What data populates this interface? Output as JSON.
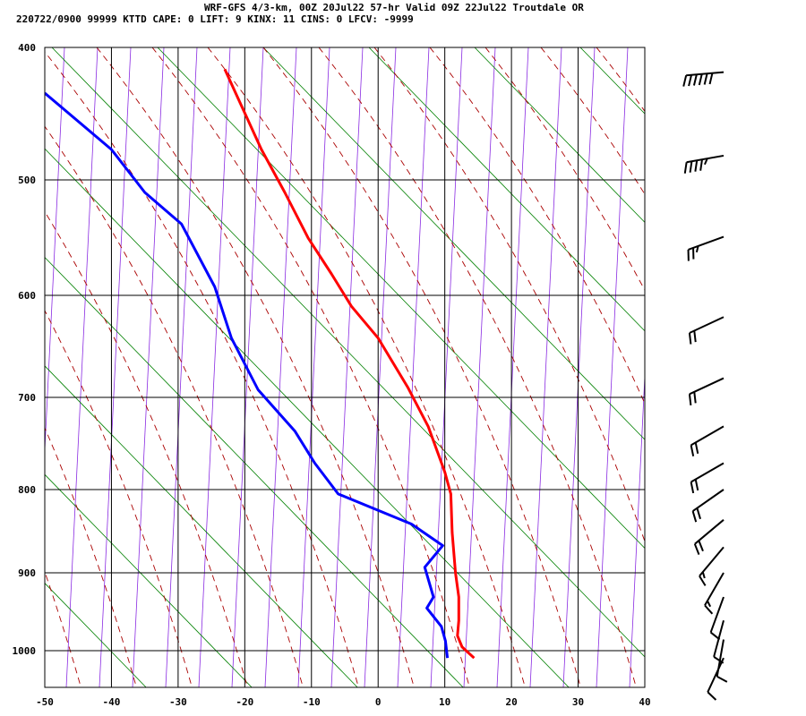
{
  "header": {
    "line1": "WRF-GFS 4/3-km, 00Z 20Jul22 57-hr Valid 09Z 22Jul22 Troutdale OR",
    "line2": "220722/0900 99999  KTTD    CAPE:     0 LIFT:     9 KINX:    11 CINS:     0 LFCV: -9999"
  },
  "chart_data": {
    "type": "skew-t",
    "title": "WRF-GFS 4/3-km, 00Z 20Jul22 57-hr Valid 09Z 22Jul22 Troutdale OR",
    "x_ticks": [
      -50,
      -40,
      -30,
      -20,
      -10,
      0,
      10,
      20,
      30,
      40
    ],
    "y_ticks": [
      400,
      500,
      600,
      700,
      800,
      900,
      1000
    ],
    "xlim": [
      -50,
      40
    ],
    "ylim": [
      1040,
      400
    ],
    "grid": true,
    "colors": {
      "temperature": "#ff0000",
      "dewpoint": "#0000ff",
      "isotherm": "#8a2be2",
      "dry_adiabat": "#008000",
      "moist_adiabat": "#aa0000",
      "grid": "#000000"
    },
    "series": [
      {
        "key": "temperature",
        "points": [
          [
            -23,
            415
          ],
          [
            -17.5,
            475
          ],
          [
            -14,
            510
          ],
          [
            -10.5,
            548
          ],
          [
            -7,
            580
          ],
          [
            -4,
            610
          ],
          [
            0,
            640
          ],
          [
            4.5,
            690
          ],
          [
            7.5,
            730
          ],
          [
            10,
            780
          ],
          [
            10.9,
            805
          ],
          [
            11.1,
            850
          ],
          [
            11.6,
            900
          ],
          [
            12.1,
            930
          ],
          [
            12.1,
            960
          ],
          [
            11.9,
            980
          ],
          [
            12.6,
            995
          ],
          [
            14.4,
            1010
          ]
        ]
      },
      {
        "key": "dewpoint",
        "points": [
          [
            -50,
            432
          ],
          [
            -40,
            475
          ],
          [
            -35,
            510
          ],
          [
            -29.5,
            536
          ],
          [
            -24.5,
            592
          ],
          [
            -22,
            640
          ],
          [
            -18,
            692
          ],
          [
            -12.5,
            735
          ],
          [
            -9.5,
            770
          ],
          [
            -6,
            805
          ],
          [
            5,
            840
          ],
          [
            9.7,
            866
          ],
          [
            7,
            893
          ],
          [
            8.3,
            930
          ],
          [
            7.3,
            944
          ],
          [
            9.5,
            968
          ],
          [
            10.1,
            987
          ],
          [
            10.4,
            1010
          ]
        ]
      }
    ],
    "wind_barbs": [
      {
        "p": 417,
        "dir": 265,
        "spd": 60
      },
      {
        "p": 480,
        "dir": 260,
        "spd": 45
      },
      {
        "p": 547,
        "dir": 250,
        "spd": 25
      },
      {
        "p": 620,
        "dir": 245,
        "spd": 20
      },
      {
        "p": 680,
        "dir": 245,
        "spd": 20
      },
      {
        "p": 730,
        "dir": 240,
        "spd": 20
      },
      {
        "p": 770,
        "dir": 240,
        "spd": 20
      },
      {
        "p": 800,
        "dir": 235,
        "spd": 20
      },
      {
        "p": 835,
        "dir": 230,
        "spd": 20
      },
      {
        "p": 868,
        "dir": 220,
        "spd": 15
      },
      {
        "p": 900,
        "dir": 210,
        "spd": 15
      },
      {
        "p": 930,
        "dir": 200,
        "spd": 10
      },
      {
        "p": 960,
        "dir": 195,
        "spd": 10
      },
      {
        "p": 985,
        "dir": 190,
        "spd": 10
      },
      {
        "p": 1010,
        "dir": 205,
        "spd": 10
      }
    ]
  }
}
